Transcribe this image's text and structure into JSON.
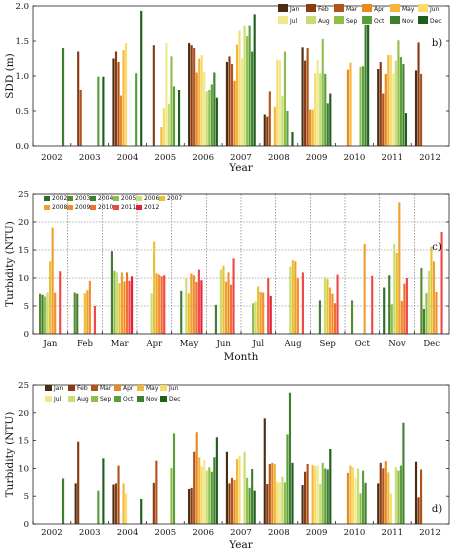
{
  "chart_data": [
    {
      "type": "bar",
      "panel_label": "b)",
      "xlabel": "Year",
      "ylabel": "SDD (m)",
      "ylim": [
        0,
        2
      ],
      "yticks": [
        "0.0",
        "0.5",
        "1.0",
        "1.5",
        "2.0"
      ],
      "grid": false,
      "legend_position": "top-right",
      "categories": [
        "2002",
        "2003",
        "2004",
        "2005",
        "2006",
        "2007",
        "2008",
        "2009",
        "2010",
        "2011",
        "2012"
      ],
      "series": [
        {
          "name": "Jan",
          "color": "#4a2c0f",
          "values": [
            null,
            null,
            1.25,
            null,
            1.47,
            1.2,
            0.45,
            1.41,
            null,
            1.1,
            1.08
          ]
        },
        {
          "name": "Feb",
          "color": "#8b3a12",
          "values": [
            null,
            1.35,
            1.35,
            1.44,
            1.44,
            1.28,
            0.42,
            1.22,
            null,
            1.2,
            1.48
          ]
        },
        {
          "name": "Mar",
          "color": "#b0541a",
          "values": [
            null,
            0.8,
            1.2,
            null,
            1.4,
            1.17,
            0.78,
            1.4,
            null,
            0.75,
            1.03
          ]
        },
        {
          "name": "Apr",
          "color": "#e88a1f",
          "values": [
            null,
            null,
            0.72,
            null,
            1.05,
            0.93,
            null,
            0.52,
            1.09,
            1.03,
            null
          ]
        },
        {
          "name": "May",
          "color": "#f5b63a",
          "values": [
            null,
            null,
            1.37,
            0.27,
            1.25,
            1.45,
            0.56,
            0.52,
            1.19,
            1.3,
            null
          ]
        },
        {
          "name": "Jun",
          "color": "#f7dc6a",
          "values": [
            null,
            null,
            1.47,
            0.54,
            1.3,
            1.65,
            1.23,
            1.04,
            null,
            1.3,
            null
          ]
        },
        {
          "name": "Jul",
          "color": "#eee98c",
          "values": [
            null,
            null,
            null,
            1.47,
            1.06,
            1.25,
            1.22,
            1.23,
            null,
            1.04,
            null
          ]
        },
        {
          "name": "Aug",
          "color": "#c8dd73",
          "values": [
            null,
            null,
            null,
            0.6,
            0.78,
            1.72,
            0.71,
            1.04,
            null,
            1.22,
            null
          ]
        },
        {
          "name": "Sep",
          "color": "#8fbf4a",
          "values": [
            null,
            null,
            null,
            1.28,
            0.8,
            1.57,
            1.35,
            1.53,
            1.13,
            1.51,
            null
          ]
        },
        {
          "name": "Oct",
          "color": "#5a9e3a",
          "values": [
            null,
            0.99,
            1.04,
            0.85,
            0.88,
            1.72,
            0.5,
            1.03,
            1.14,
            1.27,
            null
          ]
        },
        {
          "name": "Nov",
          "color": "#3f7f2f",
          "values": [
            1.4,
            null,
            null,
            null,
            1.05,
            1.35,
            null,
            0.61,
            1.73,
            1.17,
            null
          ]
        },
        {
          "name": "Dec",
          "color": "#1f5d1f",
          "values": [
            null,
            0.99,
            1.93,
            0.8,
            0.69,
            1.88,
            0.2,
            0.75,
            1.73,
            0.47,
            null
          ]
        }
      ]
    },
    {
      "type": "bar",
      "panel_label": "c)",
      "xlabel": "Month",
      "ylabel": "Turbidity (NTU)",
      "ylim": [
        0,
        25
      ],
      "yticks": [
        "0",
        "5",
        "10",
        "15",
        "20",
        "25"
      ],
      "grid": true,
      "legend_position": "top-left",
      "categories": [
        "Jan",
        "Feb",
        "Mar",
        "Apr",
        "May",
        "Jun",
        "Jul",
        "Aug",
        "Sep",
        "Oct",
        "Nov",
        "Dec"
      ],
      "series": [
        {
          "name": "2002",
          "color": "#2e6b2a",
          "values": [
            null,
            null,
            null,
            null,
            null,
            null,
            null,
            null,
            null,
            null,
            8.3,
            null
          ]
        },
        {
          "name": "2003",
          "color": "#5a8a2e",
          "values": [
            7.2,
            7.4,
            null,
            null,
            null,
            null,
            null,
            null,
            null,
            6.0,
            null,
            11.8
          ]
        },
        {
          "name": "2004",
          "color": "#3f7f2f",
          "values": [
            7.0,
            7.2,
            14.8,
            null,
            7.7,
            5.2,
            null,
            null,
            6.0,
            null,
            10.5,
            4.5
          ]
        },
        {
          "name": "2005",
          "color": "#8fbf4a",
          "values": [
            6.7,
            null,
            11.3,
            null,
            null,
            null,
            5.5,
            null,
            null,
            null,
            5.3,
            7.3
          ]
        },
        {
          "name": "2006",
          "color": "#c8dd73",
          "values": [
            7.4,
            null,
            11.0,
            7.3,
            10.0,
            11.5,
            5.8,
            12.0,
            10.2,
            null,
            16.1,
            11.3
          ]
        },
        {
          "name": "2007",
          "color": "#e8c030",
          "values": [
            13.0,
            7.3,
            9.1,
            16.5,
            7.3,
            12.2,
            8.5,
            13.2,
            9.8,
            null,
            14.5,
            15.6
          ]
        },
        {
          "name": "2008",
          "color": "#f0a030",
          "values": [
            19.0,
            7.8,
            11.0,
            10.8,
            10.8,
            9.4,
            7.5,
            13.0,
            8.3,
            16.1,
            23.5,
            13.0
          ]
        },
        {
          "name": "2009",
          "color": "#f28c2c",
          "values": [
            7.4,
            9.5,
            9.4,
            10.6,
            10.5,
            11.0,
            7.4,
            10.0,
            7.2,
            null,
            5.9,
            7.5
          ]
        },
        {
          "name": "2010",
          "color": "#f07030",
          "values": [
            null,
            null,
            11.0,
            10.3,
            9.3,
            8.8,
            null,
            null,
            5.5,
            null,
            9.0,
            null
          ]
        },
        {
          "name": "2011",
          "color": "#f04848",
          "values": [
            11.2,
            5.0,
            9.5,
            10.5,
            11.5,
            13.5,
            10.0,
            11.0,
            10.6,
            10.4,
            10.0,
            18.2
          ]
        },
        {
          "name": "2012",
          "color": "#e8203a",
          "values": [
            null,
            null,
            10.3,
            null,
            9.6,
            null,
            6.8,
            null,
            null,
            null,
            null,
            null
          ]
        }
      ]
    },
    {
      "type": "bar",
      "panel_label": "d)",
      "xlabel": "Year",
      "ylabel": "Turbidity (NTU)",
      "ylim": [
        0,
        25
      ],
      "yticks": [
        "0",
        "5",
        "10",
        "15",
        "20",
        "25"
      ],
      "grid": false,
      "legend_position": "top-left",
      "categories": [
        "2002",
        "2003",
        "2004",
        "2005",
        "2006",
        "2007",
        "2008",
        "2009",
        "2010",
        "2011",
        "2012"
      ],
      "series": [
        {
          "name": "Jan",
          "color": "#4a2c0f",
          "values": [
            null,
            7.3,
            7.1,
            null,
            6.3,
            13.0,
            19.0,
            7.0,
            null,
            7.3,
            11.2
          ]
        },
        {
          "name": "Feb",
          "color": "#8b3a12",
          "values": [
            null,
            14.8,
            7.3,
            7.4,
            6.5,
            7.3,
            7.2,
            9.4,
            null,
            11.0,
            4.8
          ]
        },
        {
          "name": "Mar",
          "color": "#b0541a",
          "values": [
            null,
            null,
            10.5,
            11.4,
            13.0,
            8.3,
            10.8,
            10.8,
            null,
            10.0,
            9.8
          ]
        },
        {
          "name": "Apr",
          "color": "#e88a1f",
          "values": [
            null,
            null,
            null,
            null,
            16.5,
            7.9,
            11.0,
            null,
            9.2,
            11.3,
            null
          ]
        },
        {
          "name": "May",
          "color": "#f5b63a",
          "values": [
            null,
            null,
            7.3,
            null,
            12.0,
            11.7,
            10.8,
            10.6,
            10.5,
            9.3,
            null
          ]
        },
        {
          "name": "Jun",
          "color": "#f7dc6a",
          "values": [
            null,
            null,
            5.5,
            null,
            10.3,
            12.2,
            7.5,
            10.4,
            10.2,
            5.5,
            null
          ]
        },
        {
          "name": "Jul",
          "color": "#eee98c",
          "values": [
            null,
            null,
            null,
            null,
            11.5,
            null,
            7.5,
            10.5,
            8.3,
            null,
            null
          ]
        },
        {
          "name": "Aug",
          "color": "#c8dd73",
          "values": [
            null,
            null,
            null,
            null,
            9.6,
            13.0,
            8.5,
            7.2,
            10.0,
            10.2,
            null
          ]
        },
        {
          "name": "Sep",
          "color": "#8fbf4a",
          "values": [
            null,
            null,
            null,
            10.1,
            10.2,
            8.3,
            7.5,
            11.0,
            5.5,
            9.6,
            null
          ]
        },
        {
          "name": "Oct",
          "color": "#5a9e3a",
          "values": [
            null,
            6.0,
            null,
            16.3,
            9.4,
            6.5,
            16.1,
            10.0,
            9.6,
            10.5,
            null
          ]
        },
        {
          "name": "Nov",
          "color": "#3f7f2f",
          "values": [
            8.2,
            null,
            null,
            null,
            12.0,
            9.9,
            23.6,
            9.8,
            7.4,
            18.2,
            null
          ]
        },
        {
          "name": "Dec",
          "color": "#1f5d1f",
          "values": [
            null,
            11.8,
            4.5,
            null,
            15.6,
            6.0,
            11.0,
            13.5,
            null,
            null,
            null
          ]
        }
      ]
    }
  ]
}
